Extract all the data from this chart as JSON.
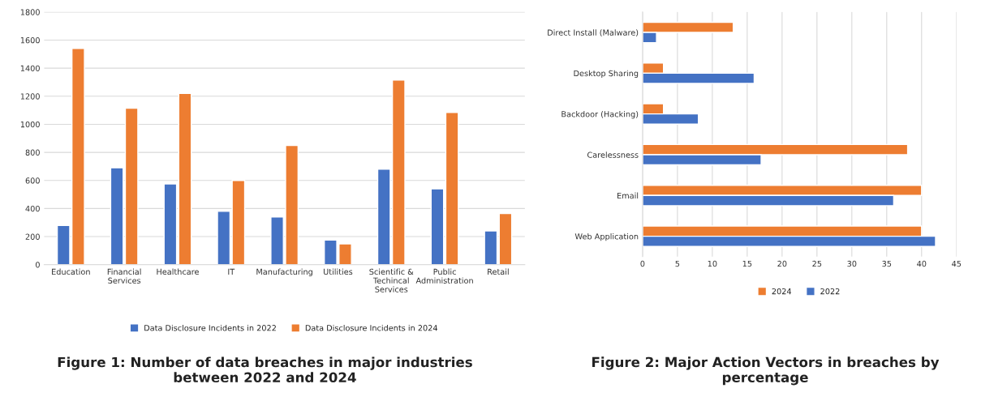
{
  "chart_data": [
    {
      "type": "bar",
      "title": "Figure 1: Number of data breaches in major industries\nbetween 2022 and 2024",
      "categories": [
        "Education",
        "Financial\nServices",
        "Healthcare",
        "IT",
        "Manufacturing",
        "Utilities",
        "Scientific &\nTechincal\nServices",
        "Public\nAdministration",
        "Retail"
      ],
      "series": [
        {
          "name": "Data Disclosure Incidents in 2022",
          "color": "#4472c4",
          "values": [
            280,
            690,
            575,
            380,
            340,
            175,
            680,
            540,
            240
          ]
        },
        {
          "name": "Data Disclosure Incidents in 2024",
          "color": "#ed7d31",
          "values": [
            1540,
            1115,
            1220,
            600,
            850,
            148,
            1315,
            1085,
            365
          ]
        }
      ],
      "ylim": [
        0,
        1800
      ],
      "yticks": [
        0,
        200,
        400,
        600,
        800,
        1000,
        1200,
        1400,
        1600,
        1800
      ],
      "grid": "y",
      "legend": "bottom"
    },
    {
      "type": "bar",
      "orientation": "horizontal",
      "title": "Figure 2: Major Action Vectors in breaches by\npercentage",
      "categories": [
        "Direct Install (Malware)",
        "Desktop Sharing",
        "Backdoor (Hacking)",
        "Carelessness",
        "Email",
        "Web Application"
      ],
      "series": [
        {
          "name": "2024",
          "color": "#ed7d31",
          "values": [
            13,
            3,
            3,
            38,
            40,
            40
          ]
        },
        {
          "name": "2022",
          "color": "#4472c4",
          "values": [
            2,
            16,
            8,
            17,
            36,
            42
          ]
        }
      ],
      "xlim": [
        0,
        45
      ],
      "xticks": [
        0,
        5,
        10,
        15,
        20,
        25,
        30,
        35,
        40,
        45
      ],
      "grid": "x",
      "legend": "bottom"
    }
  ]
}
